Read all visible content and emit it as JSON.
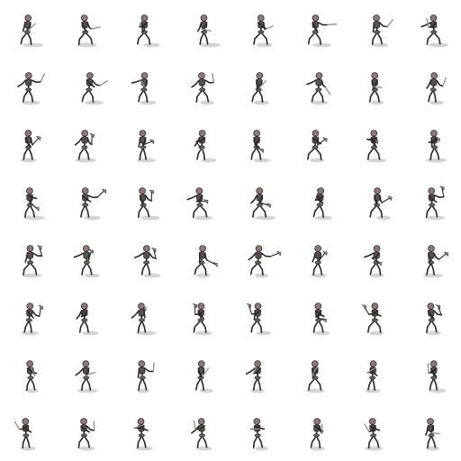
{
  "sheet": {
    "background": "#ffffff",
    "sprite_name": "skeleton",
    "rows": 8,
    "columns": 8,
    "frame_count": 64,
    "weapon_by_row": [
      "sword",
      "sword",
      "axe",
      "axe",
      "axe",
      "axe",
      "sword",
      "sword"
    ]
  },
  "colors": {
    "bone": "#6b6462",
    "bone_dark": "#2b2626",
    "skull": "#8a7f7c",
    "eye": "#c25a5a",
    "shadow": "#c9c9c9",
    "blade": "#8e8e8e"
  }
}
